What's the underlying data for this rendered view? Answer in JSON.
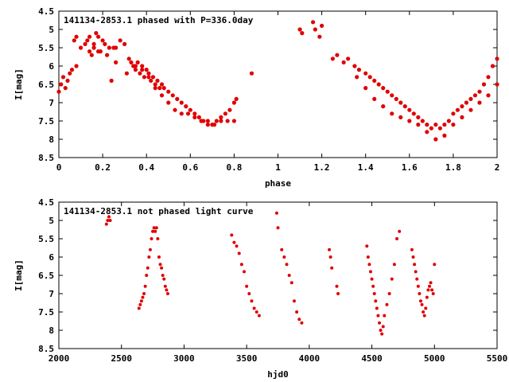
{
  "chart_data": [
    {
      "type": "scatter",
      "title": "141134-2853.1 phased with P=336.0day",
      "xlabel": "phase",
      "ylabel": "I[mag]",
      "xlim": [
        0,
        2
      ],
      "ylim": [
        8.5,
        4.5
      ],
      "y_inverted": true,
      "xticks": [
        "0",
        "0.2",
        "0.4",
        "0.6",
        "0.8",
        "1",
        "1.2",
        "1.4",
        "1.6",
        "1.8",
        "2"
      ],
      "yticks": [
        "4.5",
        "5",
        "5.5",
        "6",
        "6.5",
        "7",
        "7.5",
        "8",
        "8.5"
      ],
      "grid": false,
      "marker_color": "#e00000",
      "series": [
        {
          "x": [
            0.0,
            0.01,
            0.02,
            0.03,
            0.04,
            0.05,
            0.06,
            0.07,
            0.08,
            0.08,
            0.1,
            0.12,
            0.13,
            0.14,
            0.15,
            0.16,
            0.17,
            0.18,
            0.19,
            0.2,
            0.21,
            0.22,
            0.23,
            0.24,
            0.25,
            0.26,
            0.28,
            0.3,
            0.32,
            0.33,
            0.34,
            0.35,
            0.36,
            0.37,
            0.38,
            0.39,
            0.4,
            0.41,
            0.42,
            0.43,
            0.44,
            0.45,
            0.46,
            0.47,
            0.48,
            0.5,
            0.52,
            0.54,
            0.56,
            0.58,
            0.6,
            0.62,
            0.64,
            0.66,
            0.68,
            0.7,
            0.72,
            0.74,
            0.76,
            0.78,
            0.8,
            0.81,
            0.35,
            0.38,
            0.41,
            0.44,
            0.47,
            0.5,
            0.53,
            0.56,
            0.59,
            0.62,
            0.65,
            0.68,
            0.71,
            0.74,
            0.77,
            0.8,
            0.88,
            1.1,
            1.11,
            1.16,
            1.17,
            1.19,
            1.2,
            1.25,
            1.27,
            1.3,
            1.32,
            1.35,
            1.37,
            1.4,
            1.42,
            1.44,
            1.46,
            1.48,
            1.5,
            1.52,
            1.54,
            1.56,
            1.58,
            1.6,
            1.62,
            1.64,
            1.66,
            1.68,
            1.7,
            1.72,
            1.74,
            1.76,
            1.78,
            1.8,
            1.82,
            1.84,
            1.86,
            1.88,
            1.9,
            1.92,
            1.94,
            1.96,
            1.98,
            2.0,
            1.36,
            1.4,
            1.44,
            1.48,
            1.52,
            1.56,
            1.6,
            1.64,
            1.68,
            1.72,
            1.76,
            1.8,
            1.84,
            1.88,
            1.92,
            1.96,
            2.0,
            0.14,
            0.16,
            0.18,
            0.26,
            0.31
          ],
          "y": [
            6.7,
            6.5,
            6.3,
            6.6,
            6.4,
            6.2,
            6.1,
            5.3,
            5.2,
            6.0,
            5.5,
            5.4,
            5.3,
            5.6,
            5.7,
            5.5,
            5.1,
            5.2,
            5.6,
            5.3,
            5.4,
            5.7,
            5.5,
            6.4,
            5.5,
            5.5,
            5.3,
            5.4,
            5.8,
            5.9,
            6.0,
            6.1,
            5.9,
            6.2,
            6.0,
            6.3,
            6.1,
            6.2,
            6.4,
            6.3,
            6.5,
            6.4,
            6.6,
            6.5,
            6.6,
            6.7,
            6.8,
            6.9,
            7.0,
            7.1,
            7.2,
            7.3,
            7.4,
            7.5,
            7.5,
            7.6,
            7.5,
            7.4,
            7.3,
            7.2,
            7.0,
            6.9,
            6.0,
            6.1,
            6.3,
            6.6,
            6.8,
            7.0,
            7.2,
            7.3,
            7.3,
            7.4,
            7.5,
            7.6,
            7.6,
            7.5,
            7.5,
            7.5,
            6.2,
            5.0,
            5.1,
            4.8,
            5.0,
            5.2,
            4.9,
            5.8,
            5.7,
            5.9,
            5.8,
            6.0,
            6.1,
            6.2,
            6.3,
            6.4,
            6.5,
            6.6,
            6.7,
            6.8,
            6.9,
            7.0,
            7.1,
            7.2,
            7.3,
            7.4,
            7.5,
            7.6,
            7.7,
            7.6,
            7.7,
            7.6,
            7.5,
            7.3,
            7.2,
            7.1,
            7.0,
            6.9,
            6.8,
            6.7,
            6.5,
            6.3,
            6.0,
            5.8,
            6.3,
            6.6,
            6.9,
            7.1,
            7.3,
            7.4,
            7.5,
            7.6,
            7.8,
            8.0,
            7.9,
            7.6,
            7.4,
            7.2,
            7.0,
            6.8,
            6.5,
            5.2,
            5.4,
            5.6,
            5.9,
            6.2
          ]
        }
      ]
    },
    {
      "type": "scatter",
      "title": "141134-2853.1 not phased light curve",
      "xlabel": "hjd0",
      "ylabel": "I[mag]",
      "xlim": [
        2000,
        5500
      ],
      "ylim": [
        8.5,
        4.5
      ],
      "y_inverted": true,
      "xticks": [
        "2000",
        "2500",
        "3000",
        "3500",
        "4000",
        "4500",
        "5000",
        "5500"
      ],
      "yticks": [
        "4.5",
        "5",
        "5.5",
        "6",
        "6.5",
        "7",
        "7.5",
        "8",
        "8.5"
      ],
      "grid": false,
      "marker_color": "#e00000",
      "series": [
        {
          "x": [
            2380,
            2390,
            2400,
            2410,
            2640,
            2650,
            2660,
            2670,
            2680,
            2690,
            2700,
            2710,
            2720,
            2730,
            2740,
            2750,
            2760,
            2770,
            2780,
            2790,
            2800,
            2810,
            2820,
            2830,
            2840,
            2850,
            2860,
            2870,
            3380,
            3400,
            3420,
            3440,
            3460,
            3480,
            3500,
            3520,
            3540,
            3560,
            3580,
            3600,
            3740,
            3750,
            3780,
            3800,
            3820,
            3840,
            3860,
            3880,
            3900,
            3920,
            3940,
            4160,
            4170,
            4180,
            4220,
            4230,
            4460,
            4470,
            4480,
            4490,
            4500,
            4510,
            4520,
            4530,
            4540,
            4550,
            4560,
            4570,
            4580,
            4590,
            4600,
            4620,
            4640,
            4660,
            4680,
            4700,
            4720,
            4820,
            4830,
            4840,
            4850,
            4860,
            4870,
            4880,
            4890,
            4900,
            4910,
            4920,
            4930,
            4940,
            4950,
            4960,
            4970,
            4980,
            4990,
            5000
          ],
          "y": [
            5.1,
            5.0,
            4.9,
            5.0,
            7.4,
            7.3,
            7.2,
            7.1,
            7.0,
            6.8,
            6.5,
            6.3,
            6.0,
            5.8,
            5.5,
            5.3,
            5.2,
            5.3,
            5.2,
            5.5,
            6.0,
            6.2,
            6.3,
            6.5,
            6.6,
            6.8,
            6.9,
            7.0,
            5.4,
            5.6,
            5.7,
            5.9,
            6.2,
            6.4,
            6.8,
            7.0,
            7.2,
            7.4,
            7.5,
            7.6,
            4.8,
            5.2,
            5.8,
            6.0,
            6.2,
            6.5,
            6.7,
            7.2,
            7.5,
            7.7,
            7.8,
            5.8,
            6.0,
            6.3,
            6.8,
            7.0,
            5.7,
            6.0,
            6.2,
            6.4,
            6.6,
            6.8,
            7.0,
            7.2,
            7.4,
            7.6,
            7.8,
            8.0,
            8.1,
            7.9,
            7.6,
            7.3,
            7.0,
            6.6,
            6.2,
            5.5,
            5.3,
            5.8,
            6.0,
            6.2,
            6.4,
            6.6,
            6.8,
            7.0,
            7.2,
            7.3,
            7.5,
            7.6,
            7.4,
            7.1,
            6.9,
            6.8,
            6.7,
            6.9,
            7.0,
            6.2
          ]
        }
      ]
    }
  ]
}
